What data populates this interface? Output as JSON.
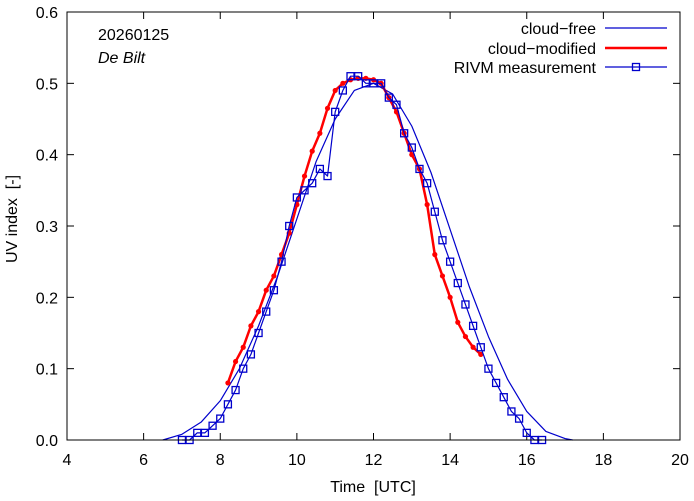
{
  "chart_data": {
    "type": "line",
    "title": "",
    "date_label": "20260125",
    "station_label": "De Bilt",
    "xlabel": "Time  [UTC]",
    "ylabel": "UV index  [-]",
    "xlim": [
      4,
      20
    ],
    "ylim": [
      0.0,
      0.6
    ],
    "xticks": [
      "4",
      "6",
      "8",
      "10",
      "12",
      "14",
      "16",
      "18",
      "20"
    ],
    "xtick_values": [
      4,
      6,
      8,
      10,
      12,
      14,
      16,
      18,
      20
    ],
    "yticks": [
      "0.0",
      "0.1",
      "0.2",
      "0.3",
      "0.4",
      "0.5",
      "0.6"
    ],
    "ytick_values": [
      0.0,
      0.1,
      0.2,
      0.3,
      0.4,
      0.5,
      0.6
    ],
    "legend_position": "top-right",
    "series": [
      {
        "name": "cloud−free",
        "color": "#0000cc",
        "style": "thin-line",
        "x": [
          6.5,
          7.0,
          7.5,
          8.0,
          8.5,
          9.0,
          9.5,
          10.0,
          10.5,
          11.0,
          11.5,
          12.0,
          12.5,
          13.0,
          13.5,
          14.0,
          14.5,
          15.0,
          15.5,
          16.0,
          16.5,
          17.0,
          17.2
        ],
        "y": [
          0.0,
          0.008,
          0.025,
          0.055,
          0.1,
          0.16,
          0.23,
          0.31,
          0.39,
          0.45,
          0.49,
          0.5,
          0.485,
          0.44,
          0.375,
          0.295,
          0.215,
          0.145,
          0.085,
          0.04,
          0.012,
          0.002,
          0.0
        ]
      },
      {
        "name": "cloud−modified",
        "color": "#ff0000",
        "style": "thick-line-dots",
        "x": [
          8.2,
          8.4,
          8.6,
          8.8,
          9.0,
          9.2,
          9.4,
          9.6,
          9.8,
          10.0,
          10.2,
          10.4,
          10.6,
          10.8,
          11.0,
          11.2,
          11.4,
          11.6,
          11.8,
          12.0,
          12.2,
          12.4,
          12.6,
          12.8,
          13.0,
          13.2,
          13.4,
          13.6,
          13.8,
          14.0,
          14.2,
          14.4,
          14.6,
          14.8
        ],
        "y": [
          0.08,
          0.11,
          0.13,
          0.16,
          0.18,
          0.21,
          0.23,
          0.26,
          0.29,
          0.33,
          0.37,
          0.405,
          0.43,
          0.465,
          0.49,
          0.5,
          0.505,
          0.507,
          0.507,
          0.505,
          0.5,
          0.48,
          0.46,
          0.43,
          0.4,
          0.38,
          0.33,
          0.26,
          0.23,
          0.2,
          0.165,
          0.145,
          0.13,
          0.12
        ]
      },
      {
        "name": "RIVM measurement",
        "color": "#0000cc",
        "style": "line-squares",
        "x": [
          7.0,
          7.2,
          7.4,
          7.6,
          7.8,
          8.0,
          8.2,
          8.4,
          8.6,
          8.8,
          9.0,
          9.2,
          9.4,
          9.6,
          9.8,
          10.0,
          10.2,
          10.4,
          10.6,
          10.8,
          11.0,
          11.2,
          11.4,
          11.6,
          11.8,
          12.0,
          12.2,
          12.4,
          12.6,
          12.8,
          13.0,
          13.2,
          13.4,
          13.6,
          13.8,
          14.0,
          14.2,
          14.4,
          14.6,
          14.8,
          15.0,
          15.2,
          15.4,
          15.6,
          15.8,
          16.0,
          16.2,
          16.4
        ],
        "y": [
          0.0,
          0.0,
          0.01,
          0.01,
          0.02,
          0.03,
          0.05,
          0.07,
          0.1,
          0.12,
          0.15,
          0.18,
          0.21,
          0.25,
          0.3,
          0.34,
          0.35,
          0.36,
          0.38,
          0.37,
          0.46,
          0.49,
          0.51,
          0.51,
          0.5,
          0.5,
          0.5,
          0.48,
          0.47,
          0.43,
          0.41,
          0.38,
          0.36,
          0.32,
          0.28,
          0.25,
          0.22,
          0.19,
          0.16,
          0.13,
          0.1,
          0.08,
          0.06,
          0.04,
          0.03,
          0.01,
          0.0,
          0.0
        ]
      }
    ]
  }
}
